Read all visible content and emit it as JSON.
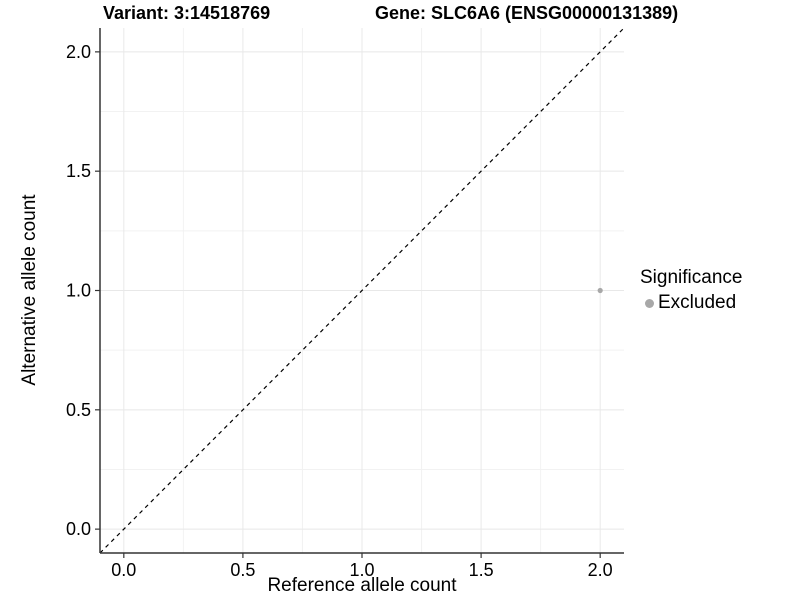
{
  "titles": {
    "variant": "Variant: 3:14518769",
    "gene": "Gene: SLC6A6 (ENSG00000131389)"
  },
  "chart_data": {
    "type": "scatter",
    "xlabel": "Reference allele count",
    "ylabel": "Alternative allele count",
    "xlim": [
      -0.1,
      2.1
    ],
    "ylim": [
      -0.1,
      2.1
    ],
    "x_ticks": [
      0.0,
      0.5,
      1.0,
      1.5,
      2.0
    ],
    "y_ticks": [
      0.0,
      0.5,
      1.0,
      1.5,
      2.0
    ],
    "x_minor_ticks": [
      0.25,
      0.75,
      1.25,
      1.75
    ],
    "y_minor_ticks": [
      0.25,
      0.75,
      1.25,
      1.75
    ],
    "tick_decimals": 1,
    "grid": true,
    "identity_line": {
      "style": "dashed",
      "from": [
        -0.1,
        -0.1
      ],
      "to": [
        2.1,
        2.1
      ]
    },
    "series": [
      {
        "name": "Excluded",
        "points": [
          [
            2.0,
            1.0
          ]
        ],
        "point_radius": 2.6
      }
    ],
    "legend": {
      "title": "Significance",
      "position": "right",
      "items": [
        {
          "label": "Excluded",
          "color": "#a8a8a8"
        }
      ]
    }
  },
  "colors": {
    "background": "#ffffff",
    "text": "#000000",
    "axis_line": "#333333",
    "tick_mark": "#333333",
    "grid_major": "#e8e8e8",
    "grid_minor": "#f2f2f2",
    "identity_line": "#000000",
    "point": "#a8a8a8"
  }
}
